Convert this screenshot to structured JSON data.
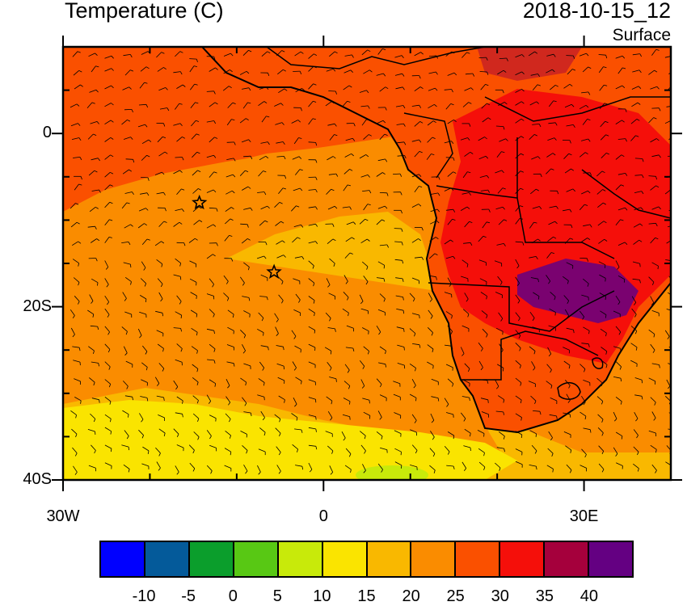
{
  "title_left": "Temperature (C)",
  "title_right": "2018-10-15_12",
  "subtitle": "Surface",
  "axes": {
    "lat_labels": [
      {
        "value": 0,
        "text": "0"
      },
      {
        "value": -20,
        "text": "20S"
      },
      {
        "value": -40,
        "text": "40S"
      }
    ],
    "lon_labels": [
      {
        "value": -30,
        "text": "30W"
      },
      {
        "value": 0,
        "text": "0"
      },
      {
        "value": 30,
        "text": "30E"
      }
    ],
    "lat_range": [
      -40,
      10
    ],
    "lon_range": [
      -30,
      40
    ]
  },
  "markers": [
    {
      "name": "star-marker",
      "lon": -14.3,
      "lat": -8.0
    },
    {
      "name": "star-marker",
      "lon": -5.7,
      "lat": -16.0
    }
  ],
  "colorbar": {
    "colors": [
      "#0000ff",
      "#045a9a",
      "#0b9e2c",
      "#58c814",
      "#c8ea0a",
      "#fae400",
      "#f9b800",
      "#fa8c00",
      "#fa5000",
      "#f50f0a",
      "#a5003c",
      "#640082"
    ],
    "labels": [
      "-10",
      "-5",
      "0",
      "5",
      "10",
      "15",
      "20",
      "25",
      "30",
      "35",
      "40"
    ]
  }
}
